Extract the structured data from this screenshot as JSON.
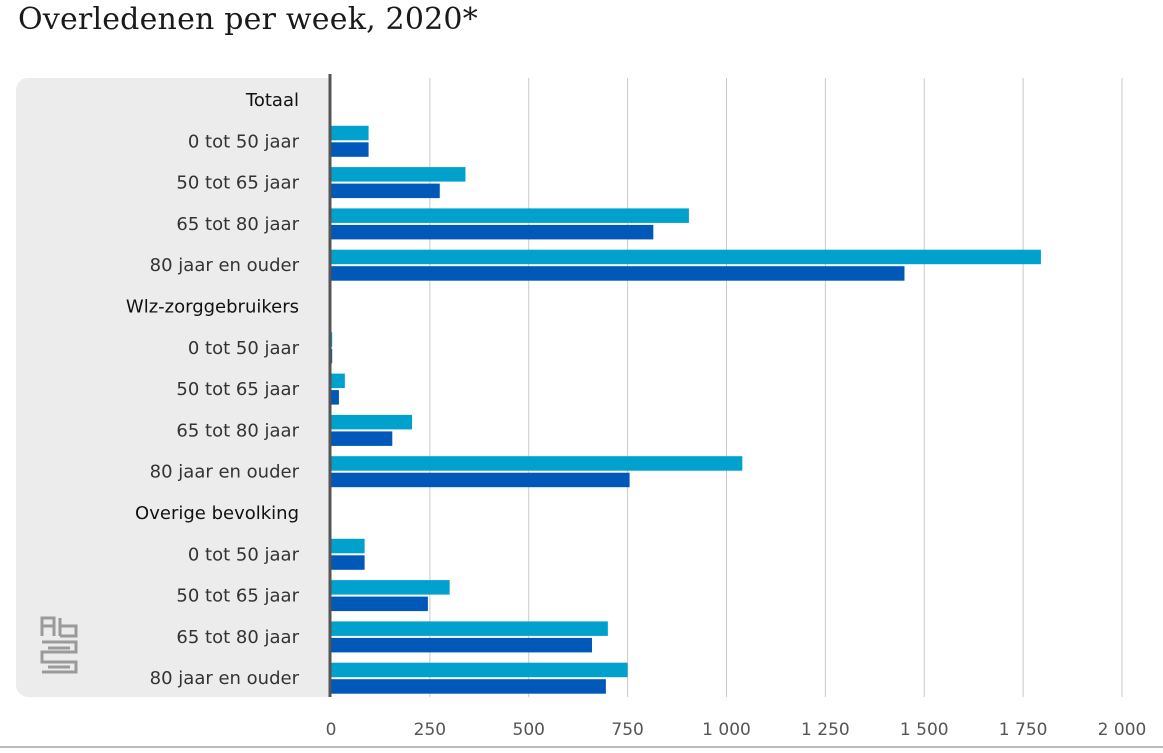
{
  "title": "Overledenen per week, 2020*",
  "chart_data": {
    "type": "bar",
    "orientation": "horizontal",
    "xlim": [
      0,
      2000
    ],
    "xticks": [
      0,
      250,
      500,
      750,
      1000,
      1250,
      1500,
      1750,
      2000
    ],
    "xtick_labels": [
      "0",
      "250",
      "500",
      "750",
      "1 000",
      "1 250",
      "1 500",
      "1 750",
      "2 000"
    ],
    "grid": true,
    "colors": {
      "series1": "#00a1cd",
      "series2": "#0058b8"
    },
    "groups": [
      {
        "name": "Totaal",
        "categories": [
          "0 tot 50 jaar",
          "50 tot 65 jaar",
          "65 tot 80 jaar",
          "80 jaar en ouder"
        ],
        "series1": [
          95,
          340,
          905,
          1795
        ],
        "series2": [
          95,
          275,
          815,
          1450
        ]
      },
      {
        "name": "Wlz-zorggebruikers",
        "categories": [
          "0 tot 50 jaar",
          "50 tot 65 jaar",
          "65 tot 80 jaar",
          "80 jaar en ouder"
        ],
        "series1": [
          3,
          35,
          205,
          1040
        ],
        "series2": [
          3,
          20,
          155,
          755
        ]
      },
      {
        "name": "Overige bevolking",
        "categories": [
          "0 tot 50 jaar",
          "50 tot 65 jaar",
          "65 tot 80 jaar",
          "80 jaar en ouder"
        ],
        "series1": [
          85,
          300,
          700,
          750
        ],
        "series2": [
          85,
          245,
          660,
          695
        ]
      }
    ]
  },
  "logo_text": "cbs"
}
